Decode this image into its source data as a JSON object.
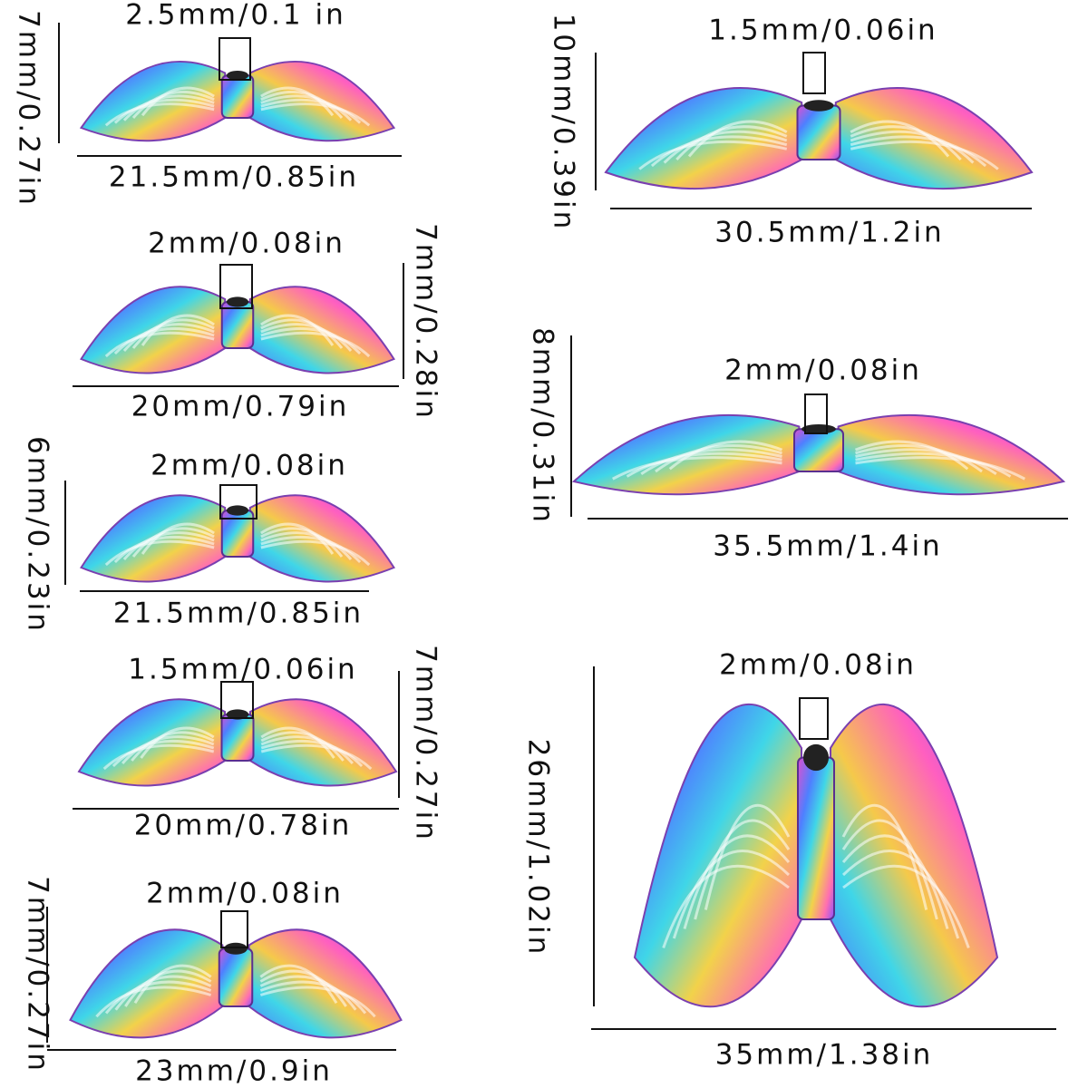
{
  "items": [
    {
      "hole": "2.5mm/0.1 in",
      "width": "21.5mm/0.85in",
      "height": "7mm/0.27in"
    },
    {
      "hole": "2mm/0.08in",
      "width": "20mm/0.79in",
      "height": "7mm/0.28in"
    },
    {
      "hole": "2mm/0.08in",
      "width": "21.5mm/0.85in",
      "height": "6mm/0.23in"
    },
    {
      "hole": "1.5mm/0.06in",
      "width": "20mm/0.78in",
      "height": "7mm/0.27in"
    },
    {
      "hole": "2mm/0.08in",
      "width": "23mm/0.9in",
      "height": "7mm/0.27in"
    },
    {
      "hole": "1.5mm/0.06in",
      "width": "30.5mm/1.2in",
      "height": "10mm/0.39in"
    },
    {
      "hole": "2mm/0.08in",
      "width": "35.5mm/1.4in",
      "height": "8mm/0.31in"
    },
    {
      "hole": "2mm/0.08in",
      "width": "35mm/1.38in",
      "height": "26mm/1.02in"
    }
  ]
}
